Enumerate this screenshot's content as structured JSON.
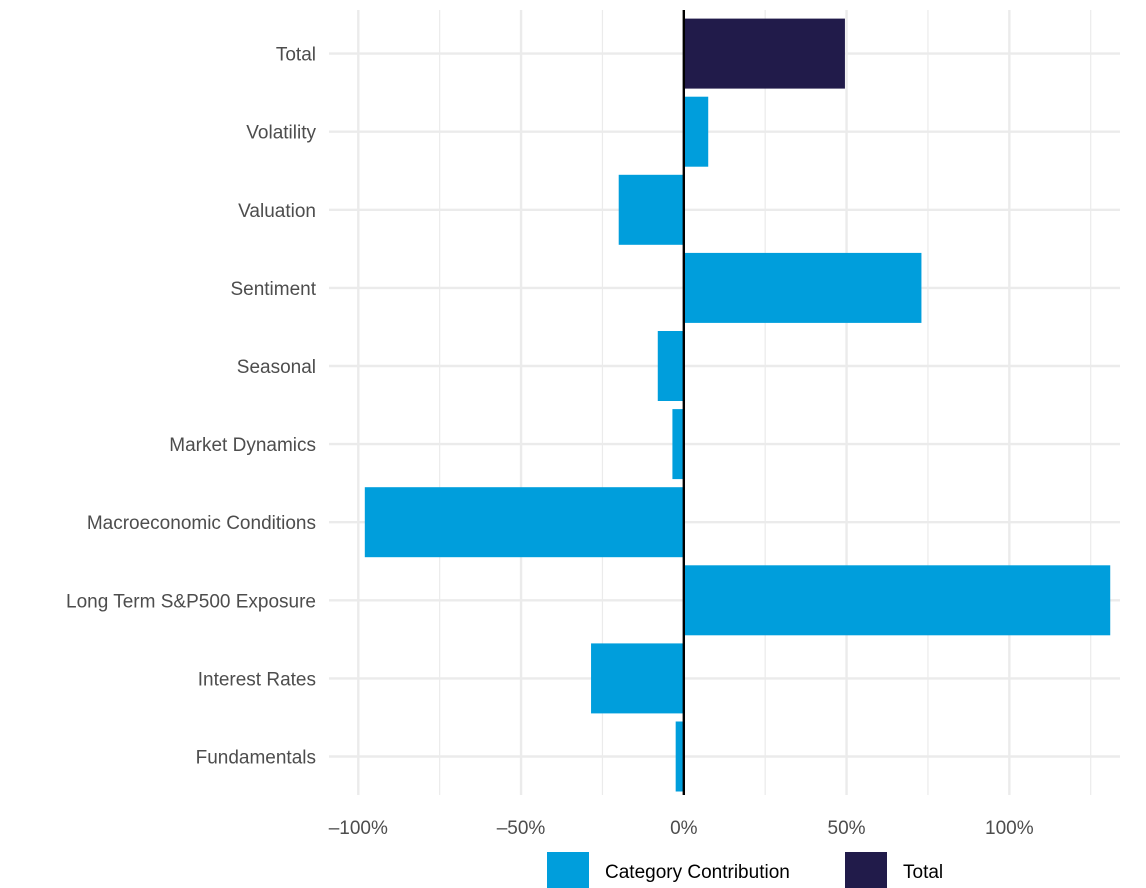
{
  "chart_data": {
    "type": "bar",
    "orientation": "horizontal",
    "categories": [
      "Fundamentals",
      "Interest Rates",
      "Long Term S&P500 Exposure",
      "Macroeconomic Conditions",
      "Market Dynamics",
      "Seasonal",
      "Sentiment",
      "Valuation",
      "Volatility",
      "Total"
    ],
    "values": [
      -2.5,
      -28.5,
      131,
      -98,
      -3.5,
      -8,
      73,
      -20,
      7.5,
      49.5
    ],
    "series_assignment": [
      "Category Contribution",
      "Category Contribution",
      "Category Contribution",
      "Category Contribution",
      "Category Contribution",
      "Category Contribution",
      "Category Contribution",
      "Category Contribution",
      "Category Contribution",
      "Total"
    ],
    "series": [
      {
        "name": "Category Contribution",
        "color": "#009edc"
      },
      {
        "name": "Total",
        "color": "#211b4a"
      }
    ],
    "x_ticks": [
      -100,
      -50,
      0,
      50,
      100
    ],
    "x_tick_labels": [
      "–100%",
      "–50%",
      "0%",
      "50%",
      "100%"
    ],
    "xlim": [
      -109,
      134
    ],
    "grid": true,
    "legend_position": "bottom",
    "title": "",
    "xlabel": "",
    "ylabel": ""
  }
}
